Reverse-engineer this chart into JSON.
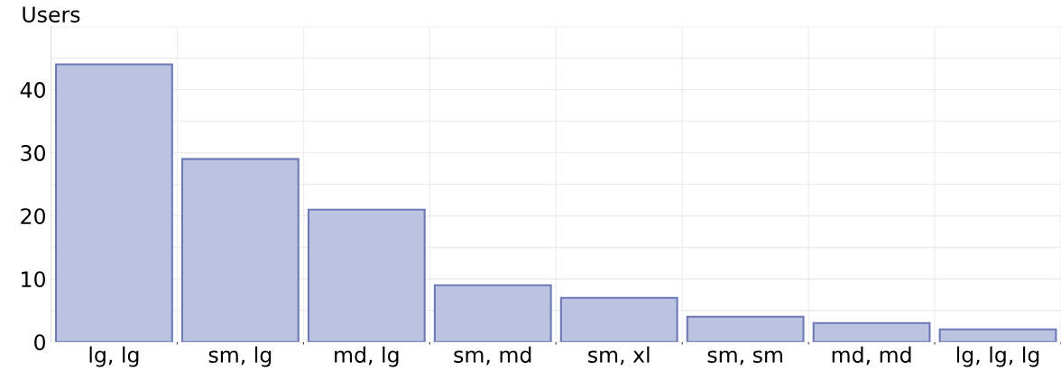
{
  "chart_data": {
    "type": "bar",
    "ylabel": "Users",
    "categories": [
      "lg, lg",
      "sm, lg",
      "md, lg",
      "sm, md",
      "sm, xl",
      "sm, sm",
      "md, md",
      "lg, lg, lg"
    ],
    "values": [
      44,
      29,
      21,
      9,
      7,
      4,
      3,
      2
    ],
    "color": "#bcc3e0",
    "ylim": [
      0,
      50
    ],
    "yticks": [
      0,
      {
        "value": 5,
        "label": null
      },
      10,
      {
        "value": 15,
        "label": null
      },
      20,
      {
        "value": 25,
        "label": null
      },
      30,
      {
        "value": 35,
        "label": null
      },
      40,
      {
        "value": 45,
        "label": null
      },
      {
        "value": 50,
        "label": null
      }
    ],
    "grid": true,
    "legend": false
  }
}
